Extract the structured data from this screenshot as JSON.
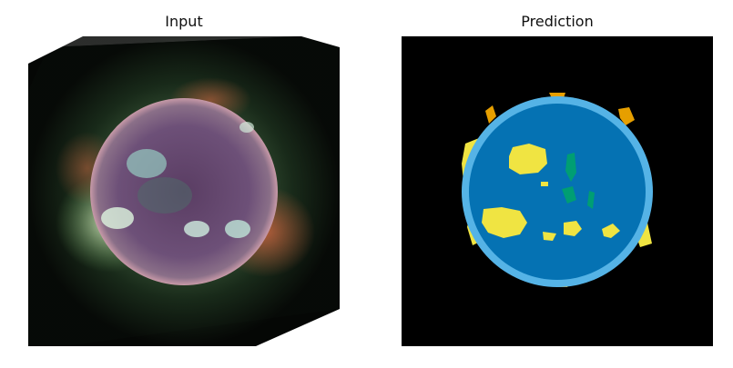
{
  "panels": {
    "input": {
      "title": "Input"
    },
    "prediction": {
      "title": "Prediction"
    }
  },
  "colors": {
    "background": "#000000",
    "disk": "#0572b3",
    "limb_ring": "#55b3e6",
    "blob_yellow": "#f0e442",
    "blob_green": "#009e73",
    "blob_orange": "#e69f00"
  }
}
